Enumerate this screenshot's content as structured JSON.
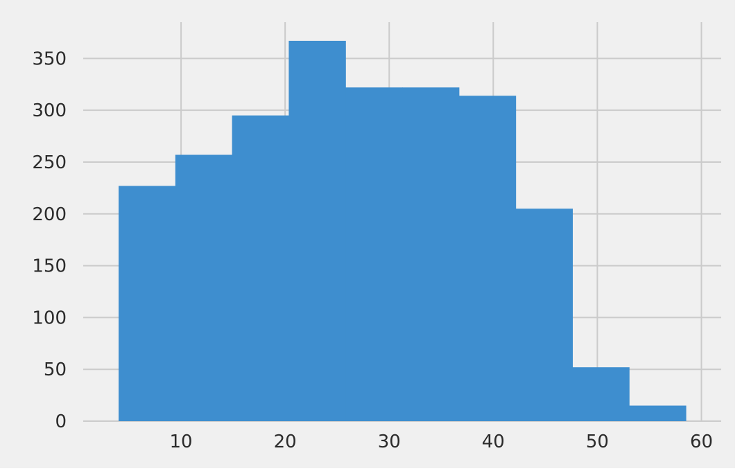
{
  "chart_data": {
    "type": "bar",
    "title": "",
    "xlabel": "",
    "ylabel": "",
    "bins": [
      {
        "start": 4.0,
        "end": 9.45,
        "count": 227
      },
      {
        "start": 9.45,
        "end": 14.9,
        "count": 257
      },
      {
        "start": 14.9,
        "end": 20.35,
        "count": 295
      },
      {
        "start": 20.35,
        "end": 25.8,
        "count": 367
      },
      {
        "start": 25.8,
        "end": 31.25,
        "count": 322
      },
      {
        "start": 31.25,
        "end": 36.7,
        "count": 322
      },
      {
        "start": 36.7,
        "end": 42.15,
        "count": 314
      },
      {
        "start": 42.15,
        "end": 47.6,
        "count": 205
      },
      {
        "start": 47.6,
        "end": 53.05,
        "count": 52
      },
      {
        "start": 53.05,
        "end": 58.5,
        "count": 15
      }
    ],
    "xlim": [
      0.6,
      61.9
    ],
    "ylim": [
      0,
      385
    ],
    "x_ticks": [
      10,
      20,
      30,
      40,
      50,
      60
    ],
    "y_ticks": [
      0,
      50,
      100,
      150,
      200,
      250,
      300,
      350
    ],
    "grid": true,
    "colors": {
      "bar": "#3e8ecf",
      "plot_background": "#f0f0f0",
      "grid": "#cbcbcb"
    }
  }
}
